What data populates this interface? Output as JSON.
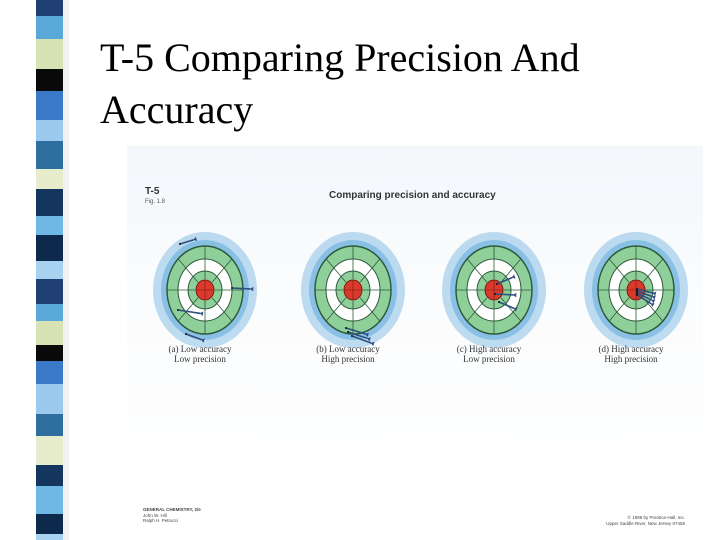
{
  "slide": {
    "title": "T-5 Comparing Precision And Accuracy"
  },
  "figure": {
    "label": "T-5",
    "fig_ref": "Fig. 1.8",
    "title": "Comparing precision and accuracy",
    "panels": [
      {
        "letter": "(a)",
        "accuracy": "Low accuracy",
        "precision": "Low precision"
      },
      {
        "letter": "(b)",
        "accuracy": "Low accuracy",
        "precision": "High precision"
      },
      {
        "letter": "(c)",
        "accuracy": "High accuracy",
        "precision": "Low precision"
      },
      {
        "letter": "(d)",
        "accuracy": "High accuracy",
        "precision": "High precision"
      }
    ],
    "book": {
      "title": "GENERAL CHEMISTRY, 2/e",
      "author1": "John W. Hill",
      "author2": "Ralph H. Petrucci"
    },
    "copyright": {
      "line1": "© 1999 by Prentice-Hall, Inc.",
      "line2": "Upper Saddle River, New Jersey 07458"
    }
  },
  "colors": {
    "board_green": "#8fcf9a",
    "bullseye": "#d93a2b",
    "halo": "#4b9fd6",
    "dart": "#2f4f7f"
  }
}
